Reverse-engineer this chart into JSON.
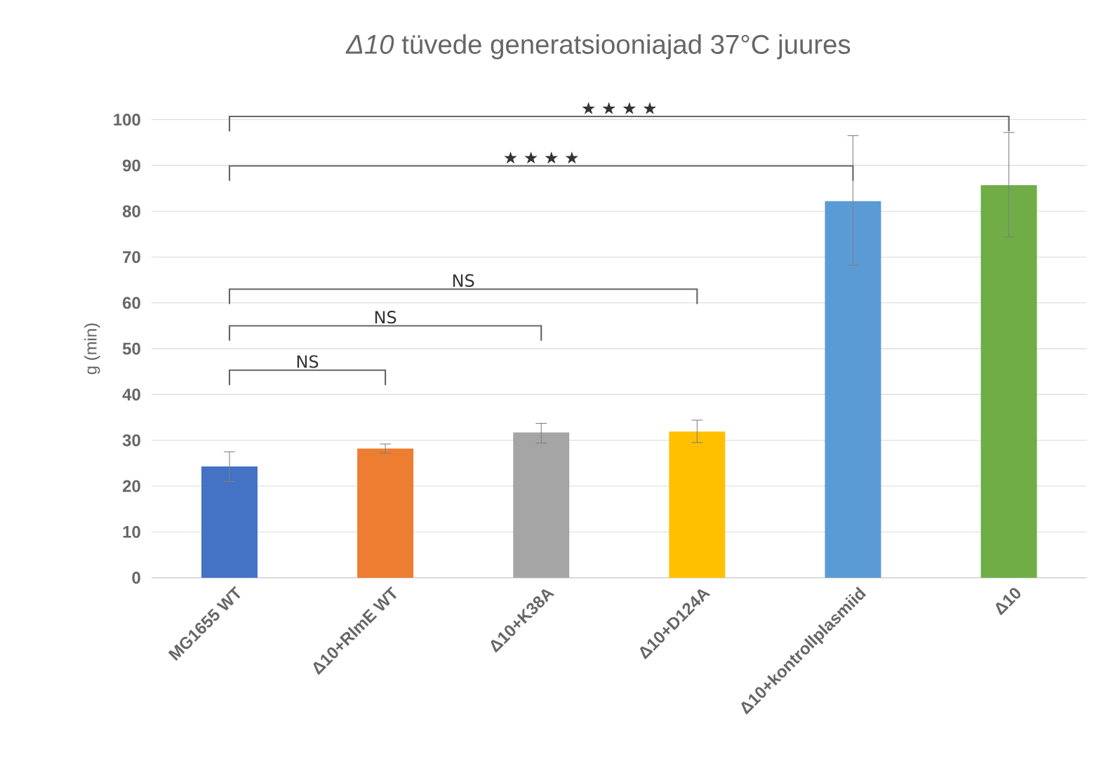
{
  "chart_data": {
    "type": "bar",
    "title": "*Δ10* tüvede generatsiooniajad 37°C juures",
    "ylabel": "g (min)",
    "categories": [
      "MG1655 WT",
      "Δ10+RlmE WT",
      "Δ10+K38A",
      "Δ10+D124A",
      "Δ10+kontrollplasmiid",
      "Δ10"
    ],
    "values": [
      24.3,
      28.2,
      31.7,
      31.9,
      82.2,
      85.7
    ],
    "errors": [
      [
        21.0,
        27.5
      ],
      [
        27.2,
        29.2
      ],
      [
        29.4,
        33.7
      ],
      [
        29.5,
        34.4
      ],
      [
        68.2,
        96.5
      ],
      [
        74.4,
        97.2
      ]
    ],
    "colors": [
      "#4472c4",
      "#ed7d31",
      "#a5a5a5",
      "#ffc000",
      "#5b9bd5",
      "#70ad47"
    ],
    "ylim": [
      0,
      100
    ],
    "yticks": [
      0,
      10,
      20,
      30,
      40,
      50,
      60,
      70,
      80,
      90,
      100
    ],
    "grid": "y",
    "annotations": [
      "★ ★ ★ ★",
      "★ ★ ★ ★",
      "NS",
      "NS",
      "NS"
    ]
  }
}
